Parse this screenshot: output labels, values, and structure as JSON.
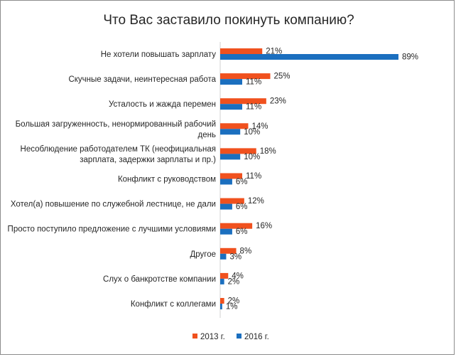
{
  "chart_data": {
    "type": "bar",
    "orientation": "horizontal",
    "title": "Что Вас заставило покинуть компанию?",
    "categories": [
      [
        "Не хотели повышать зарплату"
      ],
      [
        "Скучные задачи, неинтересная работа"
      ],
      [
        "Усталость и жажда перемен"
      ],
      [
        "Большая загруженность, ненормированный рабочий",
        "день"
      ],
      [
        "Несоблюдение работодателем ТК (неофициальная",
        "зарплата, задержки зарплаты и пр.)"
      ],
      [
        "Конфликт с руководством"
      ],
      [
        "Хотел(а) повышение по служебной лестнице, не дали"
      ],
      [
        "Просто поступило предложение с лучшими условиями"
      ],
      [
        "Другое"
      ],
      [
        "Слух о банкротстве компании"
      ],
      [
        "Конфликт с коллегами"
      ]
    ],
    "series": [
      {
        "name": "2013 г.",
        "color": "#f0511e",
        "values": [
          21,
          25,
          23,
          14,
          18,
          11,
          12,
          16,
          8,
          4,
          2
        ]
      },
      {
        "name": "2016 г.",
        "color": "#1b6fbf",
        "values": [
          89,
          11,
          11,
          10,
          10,
          6,
          6,
          6,
          3,
          2,
          1
        ]
      }
    ],
    "value_suffix": "%",
    "xlim": [
      0,
      100
    ],
    "grid": false,
    "legend_position": "bottom"
  }
}
